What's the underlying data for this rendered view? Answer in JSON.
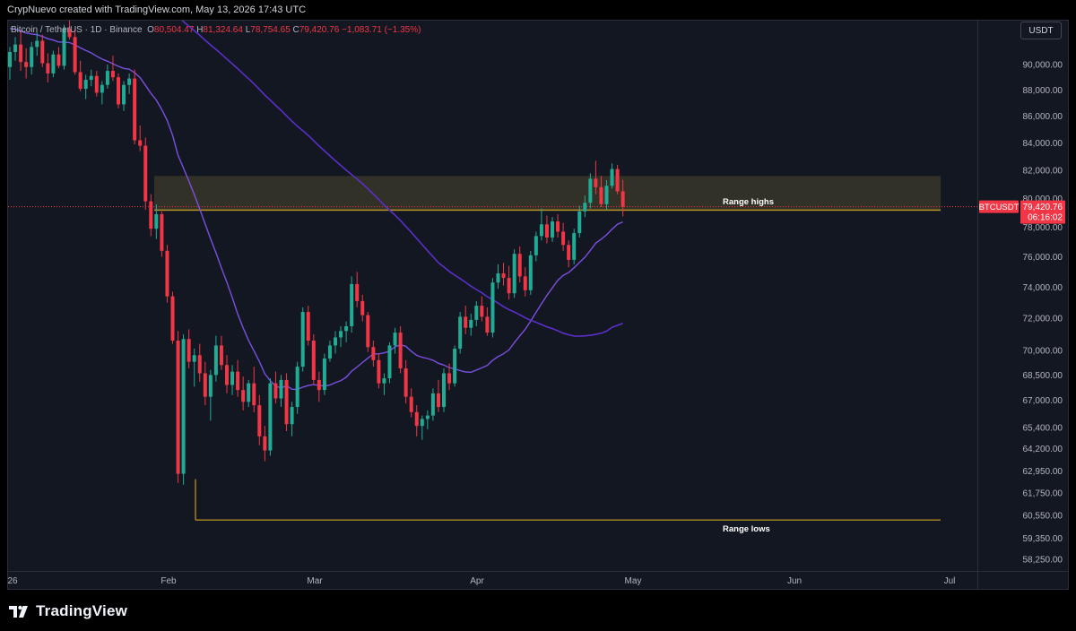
{
  "header": {
    "credit": "CrypNuevo created with TradingView.com, May 13, 2026 17:43 UTC"
  },
  "legend": {
    "name": "Bitcoin / TetherUS · 1D · Binance",
    "o_label": "O",
    "o_value": "80,504.47",
    "h_label": "H",
    "h_value": "81,324.64",
    "l_label": "L",
    "l_value": "78,754.65",
    "c_label": "C",
    "c_value": "79,420.76",
    "change": "−1,083.71 (−1.35%)"
  },
  "currency_button": "USDT",
  "price_tag": {
    "symbol": "BTCUSDT",
    "price": "79,420.76",
    "countdown": "06:16:02"
  },
  "logo": {
    "text": "TradingView",
    "icon": "tradingview-logo-icon"
  },
  "colors": {
    "up": "#22ab94",
    "down": "#f23645",
    "ma_short": "#7b4fe0",
    "ma_long": "#5b2fc9",
    "range_line": "#e8b422",
    "zone": "#3d3b2a",
    "bg": "#131722"
  },
  "chart_data": {
    "type": "candlestick",
    "title": "Bitcoin / TetherUS · 1D · Binance",
    "y_axis": {
      "labels": [
        "90,000.00",
        "88,000.00",
        "86,000.00",
        "84,000.00",
        "82,000.00",
        "80,000.00",
        "78,000.00",
        "76,000.00",
        "74,000.00",
        "72,000.00",
        "70,000.00",
        "68,500.00",
        "67,000.00",
        "65,400.00",
        "64,200.00",
        "62,950.00",
        "61,750.00",
        "60,550.00",
        "59,350.00",
        "58,250.00"
      ],
      "ticks": [
        90000,
        88000,
        86000,
        84000,
        82000,
        80000,
        78000,
        76000,
        74000,
        72000,
        70000,
        68500,
        67000,
        65400,
        64200,
        62950,
        61750,
        60550,
        59350,
        58250
      ],
      "scale": "log",
      "ylim": [
        57800,
        93600
      ]
    },
    "x_axis": {
      "labels": [
        "26",
        "Feb",
        "Mar",
        "Apr",
        "May",
        "Jun",
        "Jul"
      ]
    },
    "annotations": [
      {
        "label": "Range highs",
        "price": 79200,
        "zone": [
          79100,
          81600
        ]
      },
      {
        "label": "Range lows",
        "price": 60300
      }
    ],
    "last_close": 79420.76,
    "candles": [
      [
        89800,
        91400,
        88800,
        91000
      ],
      [
        91000,
        92200,
        90300,
        91600
      ],
      [
        91600,
        92700,
        89500,
        90200
      ],
      [
        90200,
        91300,
        88900,
        89800
      ],
      [
        89800,
        91800,
        89200,
        91400
      ],
      [
        91400,
        92600,
        90700,
        91900
      ],
      [
        91900,
        92400,
        89800,
        90100
      ],
      [
        90100,
        90900,
        88600,
        89300
      ],
      [
        89300,
        91100,
        89000,
        90800
      ],
      [
        90800,
        91400,
        89700,
        89900
      ],
      [
        89900,
        93200,
        89600,
        92900
      ],
      [
        92900,
        93600,
        92000,
        92200
      ],
      [
        92200,
        92800,
        89200,
        89400
      ],
      [
        89400,
        90300,
        87900,
        88100
      ],
      [
        88100,
        89200,
        87300,
        88800
      ],
      [
        88800,
        89600,
        88300,
        89100
      ],
      [
        89100,
        89500,
        87500,
        87800
      ],
      [
        87800,
        88700,
        86900,
        88400
      ],
      [
        88400,
        90000,
        88100,
        89500
      ],
      [
        89500,
        90700,
        88700,
        89000
      ],
      [
        89000,
        89300,
        86600,
        86900
      ],
      [
        86900,
        88700,
        86400,
        88400
      ],
      [
        88400,
        89300,
        87700,
        88900
      ],
      [
        88900,
        89600,
        83900,
        84200
      ],
      [
        84200,
        85300,
        83400,
        83800
      ],
      [
        83800,
        84400,
        79200,
        79800
      ],
      [
        79800,
        80300,
        77400,
        77900
      ],
      [
        77900,
        79600,
        77200,
        78900
      ],
      [
        78900,
        79100,
        76000,
        76400
      ],
      [
        76400,
        76800,
        73000,
        73400
      ],
      [
        73400,
        73700,
        70400,
        70600
      ],
      [
        70600,
        71200,
        62300,
        62800
      ],
      [
        62800,
        71000,
        62200,
        70700
      ],
      [
        70700,
        71300,
        68900,
        69300
      ],
      [
        69300,
        70100,
        67800,
        69700
      ],
      [
        69700,
        70400,
        68100,
        68600
      ],
      [
        68600,
        69300,
        66700,
        67200
      ],
      [
        67200,
        68800,
        65800,
        68500
      ],
      [
        68500,
        70900,
        68100,
        70300
      ],
      [
        70300,
        70900,
        68800,
        69100
      ],
      [
        69100,
        69700,
        67400,
        67900
      ],
      [
        67900,
        69100,
        67300,
        68700
      ],
      [
        68700,
        69400,
        67200,
        67600
      ],
      [
        67600,
        68400,
        66400,
        66900
      ],
      [
        66900,
        68200,
        66600,
        68000
      ],
      [
        68000,
        69000,
        66300,
        66700
      ],
      [
        66700,
        67300,
        64400,
        64900
      ],
      [
        64900,
        65500,
        63500,
        64100
      ],
      [
        64100,
        68300,
        63800,
        68000
      ],
      [
        68000,
        68700,
        66800,
        67100
      ],
      [
        67100,
        68500,
        66600,
        68200
      ],
      [
        68200,
        68600,
        65200,
        65600
      ],
      [
        65600,
        66900,
        64900,
        66600
      ],
      [
        66600,
        69300,
        66200,
        69000
      ],
      [
        69000,
        72700,
        68700,
        72400
      ],
      [
        72400,
        72800,
        70300,
        70600
      ],
      [
        70600,
        71000,
        67900,
        68200
      ],
      [
        68200,
        68700,
        66900,
        67600
      ],
      [
        67600,
        69800,
        67300,
        69500
      ],
      [
        69500,
        70600,
        69300,
        70300
      ],
      [
        70300,
        71200,
        69800,
        70800
      ],
      [
        70800,
        71500,
        70200,
        71200
      ],
      [
        71200,
        71800,
        70500,
        71500
      ],
      [
        71500,
        74700,
        71100,
        74200
      ],
      [
        74200,
        75000,
        72700,
        73100
      ],
      [
        73100,
        73500,
        71800,
        72200
      ],
      [
        72200,
        72400,
        69900,
        70200
      ],
      [
        70200,
        70600,
        69000,
        69400
      ],
      [
        69400,
        69800,
        67700,
        68000
      ],
      [
        68000,
        68600,
        67300,
        68300
      ],
      [
        68300,
        70500,
        68000,
        70300
      ],
      [
        70300,
        71400,
        69800,
        71100
      ],
      [
        71100,
        71500,
        68600,
        68900
      ],
      [
        68900,
        69400,
        66800,
        67200
      ],
      [
        67200,
        67700,
        66000,
        66300
      ],
      [
        66300,
        66700,
        64900,
        65500
      ],
      [
        65500,
        66100,
        64700,
        65900
      ],
      [
        65900,
        66400,
        65300,
        66100
      ],
      [
        66100,
        67700,
        65800,
        67400
      ],
      [
        67400,
        68200,
        66300,
        66600
      ],
      [
        66600,
        68900,
        66300,
        68600
      ],
      [
        68600,
        69200,
        67600,
        68000
      ],
      [
        68000,
        70300,
        67800,
        70100
      ],
      [
        70100,
        72400,
        69800,
        72100
      ],
      [
        72100,
        72800,
        71000,
        71400
      ],
      [
        71400,
        72300,
        70900,
        71900
      ],
      [
        71900,
        73100,
        71500,
        72800
      ],
      [
        72800,
        73400,
        71800,
        72100
      ],
      [
        72100,
        72700,
        70900,
        71100
      ],
      [
        71100,
        74600,
        70800,
        74300
      ],
      [
        74300,
        75500,
        73900,
        74900
      ],
      [
        74900,
        75600,
        74100,
        74600
      ],
      [
        74600,
        75400,
        73200,
        73600
      ],
      [
        73600,
        76500,
        73300,
        76200
      ],
      [
        76200,
        76700,
        74300,
        74700
      ],
      [
        74700,
        75300,
        73400,
        73800
      ],
      [
        73800,
        76400,
        73500,
        76100
      ],
      [
        76100,
        77700,
        75700,
        77400
      ],
      [
        77400,
        79300,
        77100,
        78200
      ],
      [
        78200,
        78800,
        76900,
        77300
      ],
      [
        77300,
        78700,
        77000,
        78400
      ],
      [
        78400,
        78900,
        77300,
        77700
      ],
      [
        77700,
        78300,
        76400,
        76800
      ],
      [
        76800,
        77100,
        75300,
        75800
      ],
      [
        75800,
        77900,
        75500,
        77600
      ],
      [
        77600,
        79500,
        77300,
        79100
      ],
      [
        79100,
        80200,
        78700,
        79700
      ],
      [
        79700,
        81800,
        79300,
        81400
      ],
      [
        81400,
        82700,
        80300,
        80800
      ],
      [
        80800,
        81600,
        79400,
        79600
      ],
      [
        79600,
        81300,
        79200,
        80900
      ],
      [
        80900,
        82500,
        80700,
        82100
      ],
      [
        82100,
        82400,
        80300,
        80504.47
      ],
      [
        80504.47,
        81324.64,
        78754.65,
        79420.76
      ]
    ]
  }
}
